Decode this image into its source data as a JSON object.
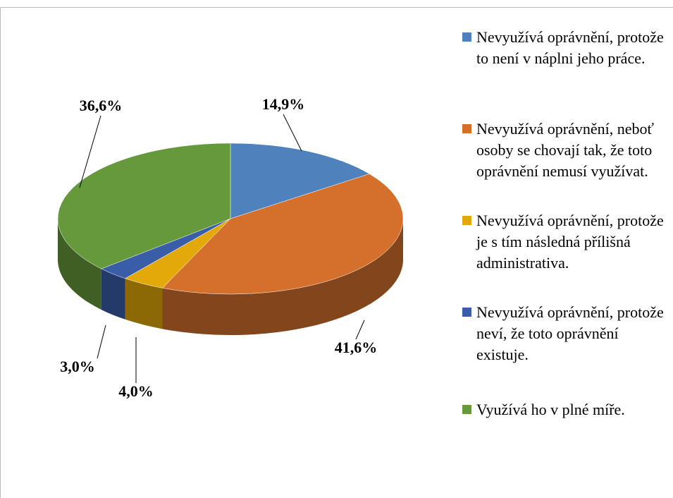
{
  "chart_data": {
    "type": "pie",
    "categories": [
      "Nevyužívá oprávnění, protože to není v náplni jeho práce.",
      "Nevyužívá oprávnění, neboť osoby se chovají tak, že toto oprávnění nemusí využívat.",
      "Nevyužívá oprávnění, protože je s tím následná přílišná administrativa.",
      "Nevyužívá oprávnění, protože neví, že toto oprávnění existuje.",
      "Využívá ho v plné míře."
    ],
    "values": [
      14.9,
      41.6,
      4.0,
      3.0,
      36.6
    ],
    "value_labels": [
      "14,9%",
      "41,6%",
      "4,0%",
      "3,0%",
      "36,6%"
    ],
    "colors": [
      "#4f81bd",
      "#d4702c",
      "#e3a90a",
      "#3a5da8",
      "#66993c"
    ],
    "legend": "right"
  }
}
